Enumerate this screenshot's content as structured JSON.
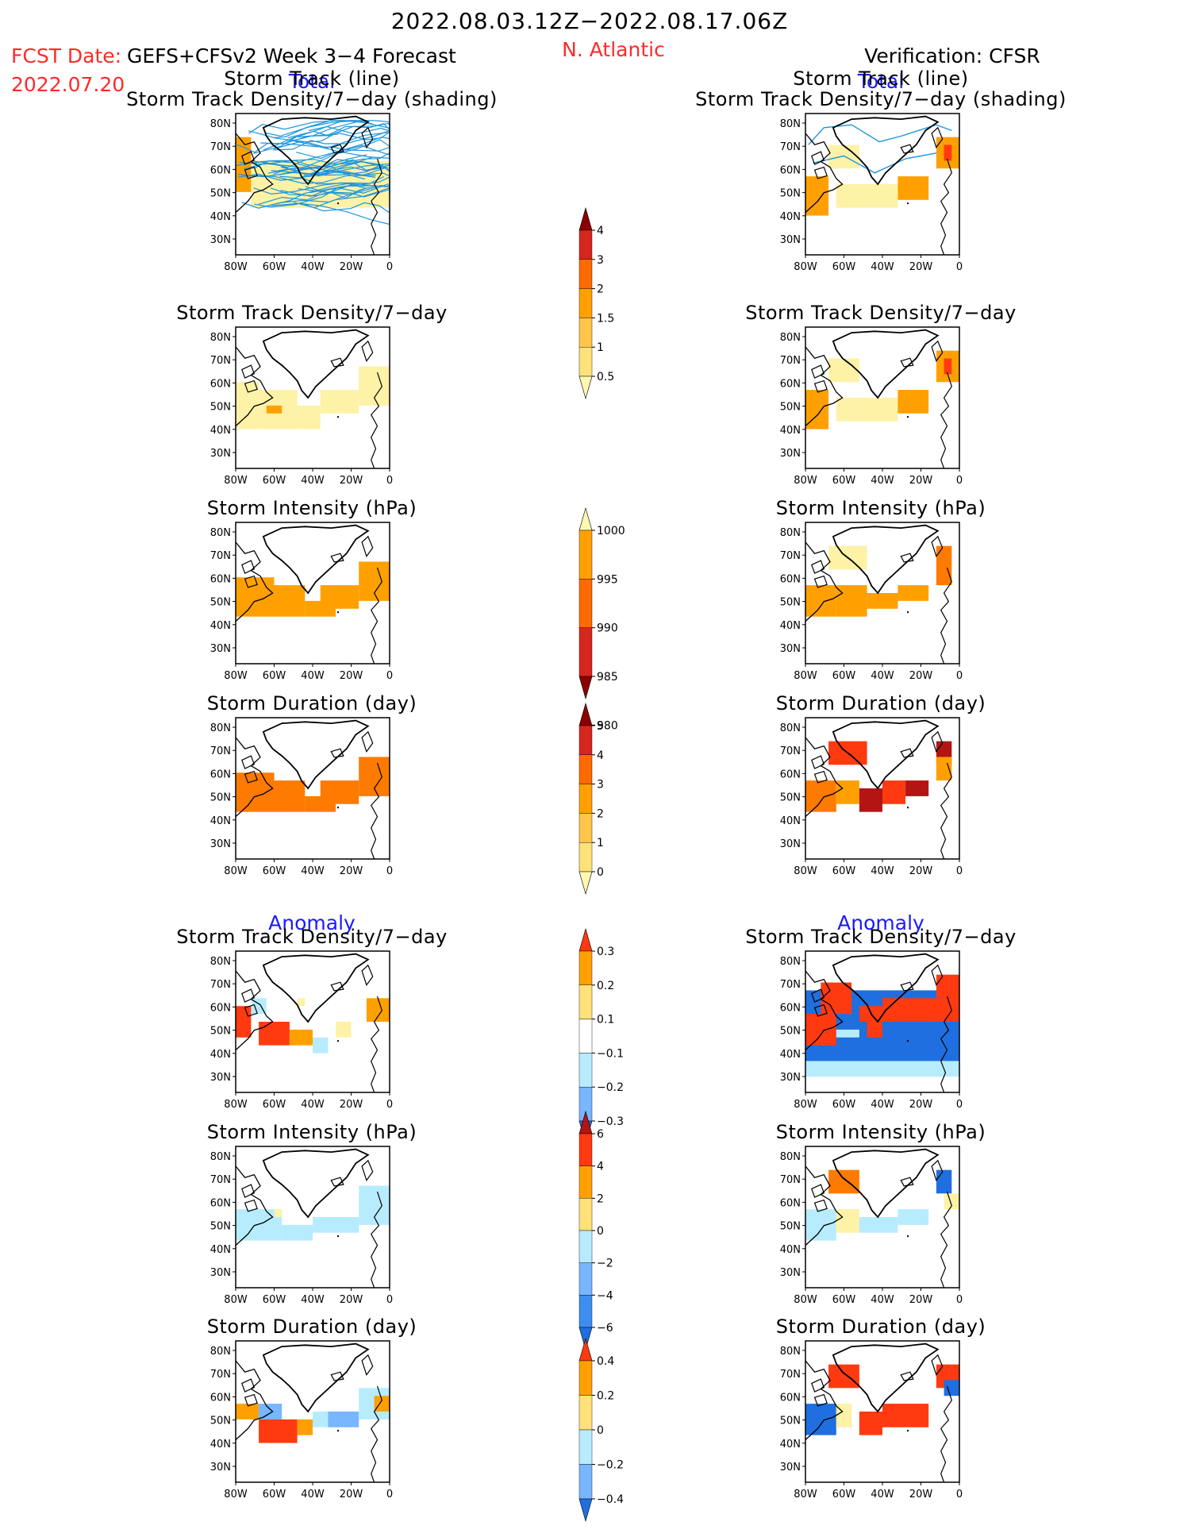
{
  "header": {
    "title": "2022.08.03.12Z−2022.08.17.06Z",
    "fcst_date_label": "FCST Date:",
    "model": "GEFS+CFSv2 Week 3−4 Forecast",
    "fcst_date_value": "2022.07.20",
    "region": "N. Atlantic",
    "verification": "Verification: CFSR"
  },
  "sections": {
    "total": "Total",
    "anomaly": "Anomaly"
  },
  "map_axes": {
    "lat_labels": [
      "80N",
      "70N",
      "60N",
      "50N",
      "40N",
      "30N"
    ],
    "lon_labels": [
      "80W",
      "60W",
      "40W",
      "20W",
      "0"
    ]
  },
  "panels": {
    "p1_title_a": "Storm Track (line)",
    "p1_title_b": "Storm Track Density/7−day (shading)",
    "p2_title": "Storm Track Density/7−day",
    "p3_title": "Storm Intensity (hPa)",
    "p4_title": "Storm Duration (day)",
    "p5_title": "Storm Track Density/7−day",
    "p6_title": "Storm Intensity (hPa)",
    "p7_title": "Storm Duration (day)"
  },
  "colorbars": {
    "density_total": {
      "labels": [
        "4",
        "3",
        "2",
        "1.5",
        "1",
        "0.5"
      ],
      "colors": [
        "#8b0000",
        "#d7261e",
        "#ff6a00",
        "#ffa000",
        "#ffc64a",
        "#fde27a",
        "#fff8b0"
      ]
    },
    "intensity_total": {
      "labels": [
        "1000",
        "995",
        "990",
        "985",
        "980"
      ],
      "colors": [
        "#fff8b0",
        "#ffa000",
        "#ff6a00",
        "#d7261e",
        "#8b0000"
      ]
    },
    "duration_total": {
      "labels": [
        "5",
        "4",
        "3",
        "2",
        "1",
        "0"
      ],
      "colors": [
        "#8b0000",
        "#d7261e",
        "#ff6a00",
        "#ffa000",
        "#ffc64a",
        "#fde27a",
        "#fff8b0"
      ]
    },
    "density_anom": {
      "labels": [
        "0.3",
        "0.2",
        "0.1",
        "−0.1",
        "−0.2",
        "−0.3"
      ],
      "colors": [
        "#ff3a10",
        "#ffa000",
        "#ffe37a",
        "#ffffff",
        "#b7ecff",
        "#78b6ff",
        "#1f6fe0"
      ]
    },
    "intensity_anom": {
      "labels": [
        "6",
        "4",
        "2",
        "0",
        "−2",
        "−4",
        "−6"
      ],
      "colors": [
        "#b41414",
        "#ff3a10",
        "#ffa000",
        "#ffe37a",
        "#b7ecff",
        "#78b6ff",
        "#3e8ef0",
        "#1f6fe0"
      ]
    },
    "duration_anom": {
      "labels": [
        "0.4",
        "0.2",
        "0",
        "−0.2",
        "−0.4"
      ],
      "colors": [
        "#ff3a10",
        "#ffa000",
        "#ffe37a",
        "#b7ecff",
        "#78b6ff",
        "#1f6fe0"
      ]
    }
  },
  "palette": {
    "land_outline": "#000000",
    "track_line": "#1e96dc",
    "light_yellow": "#fdf2a6",
    "orange": "#ffa000",
    "dark_orange": "#ff7a00",
    "red": "#ff3a10",
    "dark_red": "#b41414",
    "light_blue": "#b7ecff",
    "mid_blue": "#78b6ff",
    "blue": "#1f6fe0"
  }
}
